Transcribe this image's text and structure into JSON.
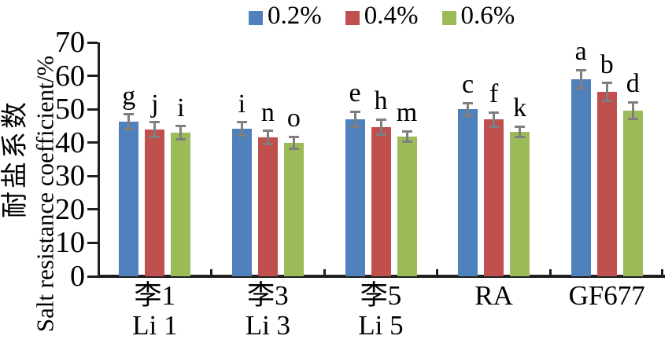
{
  "chart_data": {
    "type": "bar",
    "title": "",
    "ylabel_zh": "耐盐系数",
    "ylabel_en": "Salt resistance coefficient/%",
    "xlabel": "",
    "ylim": [
      0,
      70
    ],
    "yticks": [
      0,
      10,
      20,
      30,
      40,
      50,
      60,
      70
    ],
    "grid": false,
    "legend_position": "top-center",
    "categories": [
      {
        "line1": "李1",
        "line2": "Li 1"
      },
      {
        "line1": "李3",
        "line2": "Li 3"
      },
      {
        "line1": "李5",
        "line2": "Li 5"
      },
      {
        "line1": "RA",
        "line2": ""
      },
      {
        "line1": "GF677",
        "line2": ""
      }
    ],
    "series": [
      {
        "name": "0.2%",
        "color": "#4F81BD",
        "values": [
          46.3,
          44.1,
          47.0,
          50.0,
          59.0
        ],
        "errors": [
          2.2,
          2.0,
          2.3,
          1.9,
          2.7
        ],
        "letters": [
          "g",
          "i",
          "e",
          "c",
          "a"
        ]
      },
      {
        "name": "0.4%",
        "color": "#C0504D",
        "values": [
          43.9,
          41.5,
          44.7,
          46.9,
          55.2
        ],
        "errors": [
          2.2,
          2.0,
          2.2,
          2.1,
          2.6
        ],
        "letters": [
          "j",
          "n",
          "h",
          "f",
          "b"
        ]
      },
      {
        "name": "0.6%",
        "color": "#9BBB59",
        "values": [
          42.9,
          40.0,
          41.8,
          43.2,
          49.6
        ],
        "errors": [
          2.0,
          1.8,
          1.6,
          1.6,
          2.5
        ],
        "letters": [
          "i",
          "o",
          "m",
          "k",
          "d"
        ]
      }
    ],
    "error_bar_color": "#7f7f7f",
    "axis_color": "#1f1f1f"
  }
}
